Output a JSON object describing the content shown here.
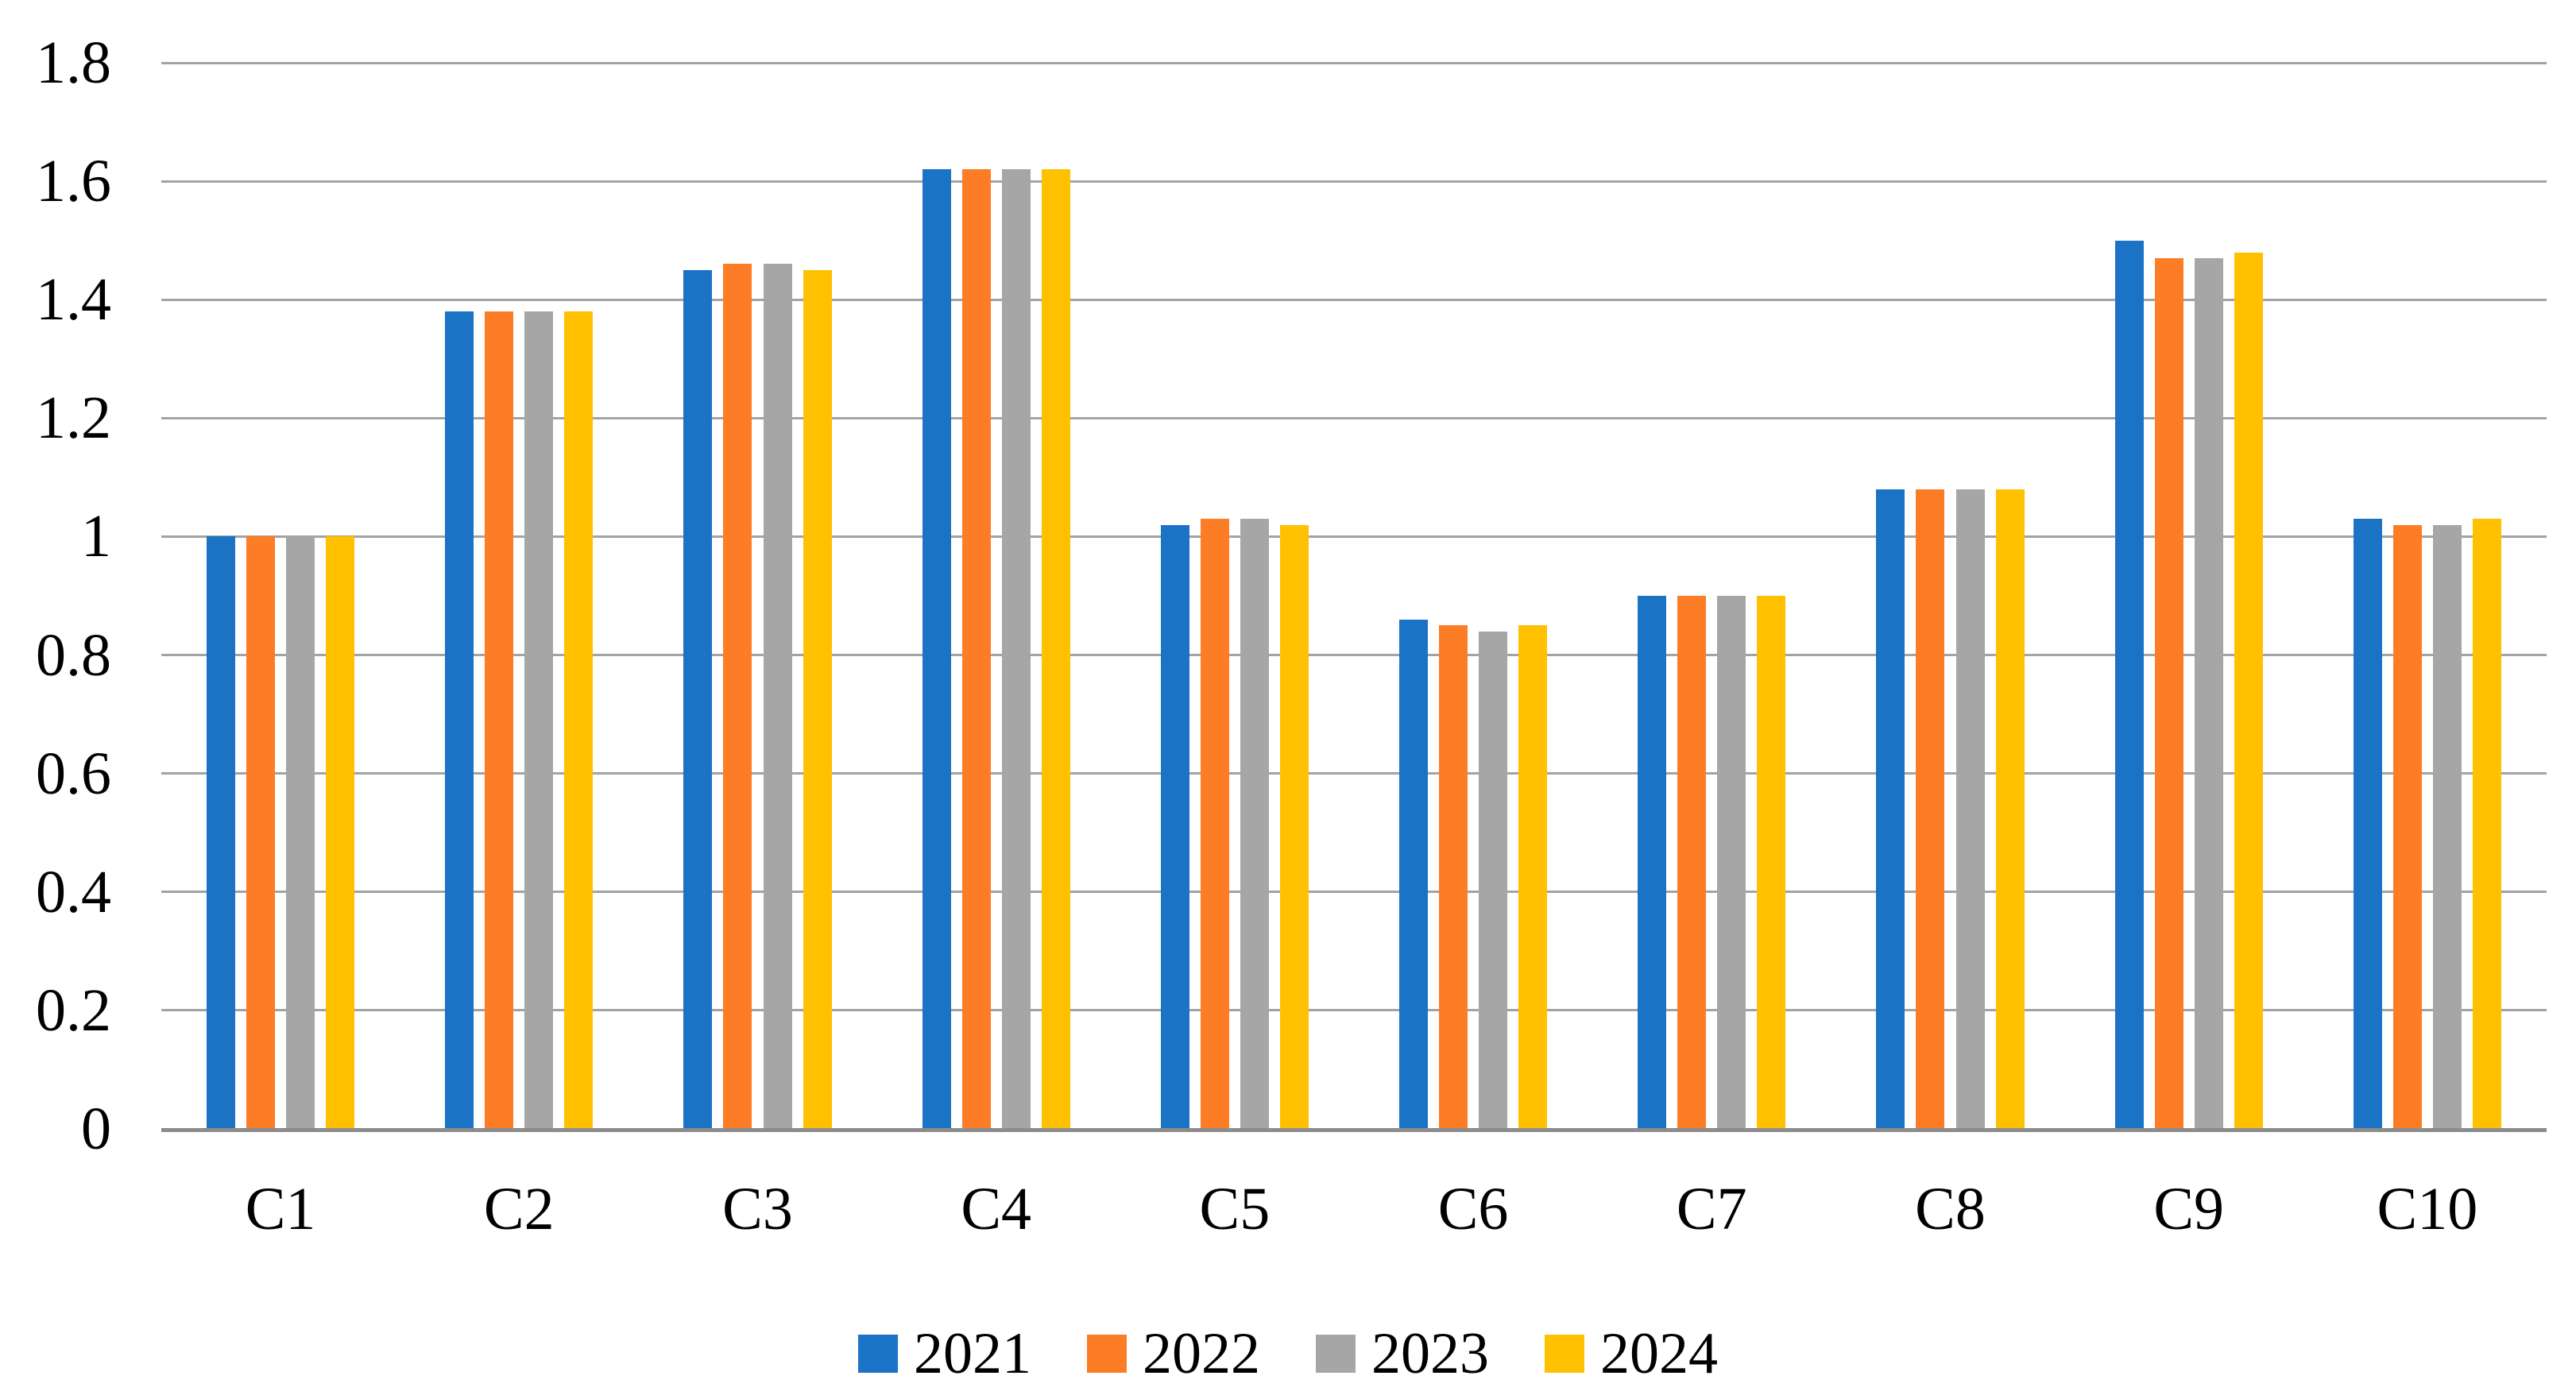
{
  "chart_data": {
    "type": "bar",
    "title": "",
    "xlabel": "",
    "ylabel": "",
    "categories": [
      "C1",
      "C2",
      "C3",
      "C4",
      "C5",
      "C6",
      "C7",
      "C8",
      "C9",
      "C10"
    ],
    "series": [
      {
        "name": "2021",
        "color": "#1B73C6",
        "values": [
          1.0,
          1.38,
          1.45,
          1.62,
          1.02,
          0.86,
          0.9,
          1.08,
          1.5,
          1.03
        ]
      },
      {
        "name": "2022",
        "color": "#FC7D26",
        "values": [
          1.0,
          1.38,
          1.46,
          1.62,
          1.03,
          0.85,
          0.9,
          1.08,
          1.47,
          1.02
        ]
      },
      {
        "name": "2023",
        "color": "#A6A6A6",
        "values": [
          1.0,
          1.38,
          1.46,
          1.62,
          1.03,
          0.84,
          0.9,
          1.08,
          1.47,
          1.02
        ]
      },
      {
        "name": "2024",
        "color": "#FFC000",
        "values": [
          1.0,
          1.38,
          1.45,
          1.62,
          1.02,
          0.85,
          0.9,
          1.08,
          1.48,
          1.03
        ]
      }
    ],
    "y_axis": {
      "min": 0,
      "max": 1.8,
      "step": 0.2,
      "tick_labels": [
        "0",
        "0.2",
        "0.4",
        "0.6",
        "0.8",
        "1",
        "1.2",
        "1.4",
        "1.6",
        "1.8"
      ]
    },
    "grid": true,
    "legend_position": "bottom",
    "colors": {
      "gridline": "#A3A3A3",
      "axis_line": "#8C8C8C",
      "text": "#000000",
      "background": "#FFFFFF"
    }
  }
}
